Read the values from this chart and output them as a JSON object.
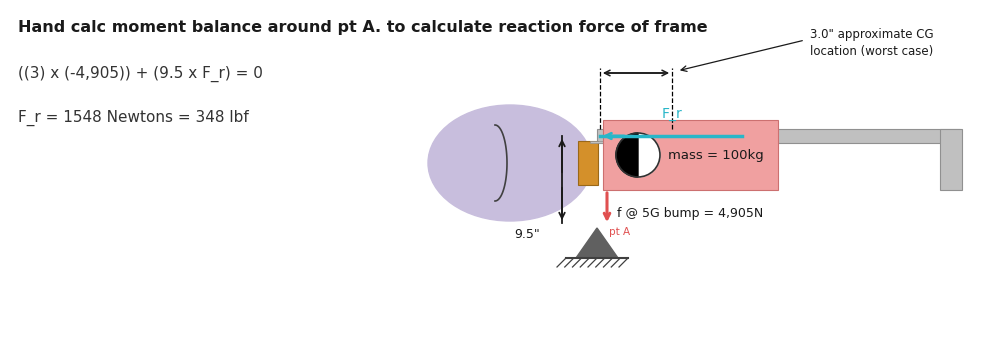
{
  "title": "Hand calc moment balance around pt A. to calculate reaction force of frame",
  "eq1": "((3) x (-4,905)) + (9.5 x F_r) = 0",
  "eq2": "F_r = 1548 Newtons = 348 lbf",
  "label_9_5": "9.5\"",
  "label_cg": "3.0\" approximate CG\nlocation (worst case)",
  "label_Fr": "F_r",
  "label_mass": "mass = 100kg",
  "label_force": "f @ 5G bump = 4,905N",
  "label_ptA": "pt A",
  "bg_color": "#ffffff",
  "title_color": "#1a1a1a",
  "text_color": "#333333",
  "cyan_color": "#29b6c8",
  "red_color": "#e05050",
  "pink_fill": "#f0a0a0",
  "gray_fill": "#c0c0c0",
  "gray_dark": "#a0a0a0",
  "orange_fill": "#d4902a",
  "lavender_fill": "#c8bedd",
  "dark_gray": "#606060",
  "black": "#1a1a1a"
}
